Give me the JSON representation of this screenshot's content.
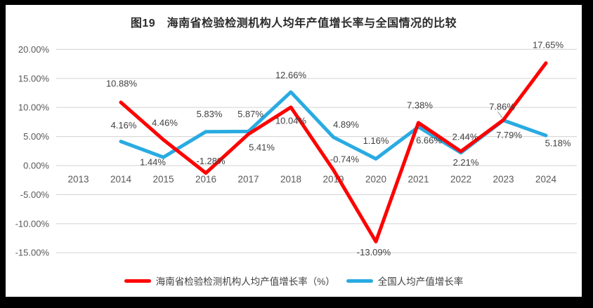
{
  "chart_data": {
    "type": "line",
    "title": "图19　海南省检验检测机构人均年产值增长率与全国情况的比较",
    "categories": [
      "2013",
      "2014",
      "2015",
      "2016",
      "2017",
      "2018",
      "2019",
      "2020",
      "2021",
      "2022",
      "2023",
      "2024"
    ],
    "ylim": [
      -15,
      20
    ],
    "ytick_step": 5,
    "ytick_labels": [
      "20.00%",
      "15.00%",
      "10.00%",
      "5.00%",
      "0.00%",
      "-5.00%",
      "-10.00%",
      "-15.00%"
    ],
    "grid": true,
    "legend_position": "bottom",
    "colors": {
      "grid": "#d9d9d9",
      "axis_text": "#595959",
      "label_text": "#3f3f3f",
      "leader": "#a6a6a6"
    },
    "series": [
      {
        "key": "hainan",
        "name": "海南省检验检测机构人均产值增长率（%）",
        "color": "#fe0000",
        "values": [
          null,
          10.88,
          4.46,
          -1.28,
          5.41,
          10.04,
          -0.74,
          -13.09,
          7.38,
          2.44,
          7.86,
          17.65
        ],
        "labels": [
          null,
          "10.88%",
          "4.46%",
          "-1.28%",
          "5.41%",
          "10.04%",
          "-0.74%",
          "-13.09%",
          "7.38%",
          "2.44%",
          "7.86%",
          "17.65%"
        ],
        "label_offsets": [
          null,
          [
            1,
            -27
          ],
          [
            2,
            -24
          ],
          [
            7,
            -17
          ],
          [
            19,
            19
          ],
          [
            0,
            19
          ],
          [
            16,
            -15
          ],
          [
            -3,
            15
          ],
          [
            2,
            -25
          ],
          [
            6,
            -21
          ],
          [
            -2,
            -19
          ],
          [
            3,
            -26
          ]
        ],
        "label_leaders": [
          false,
          false,
          false,
          false,
          false,
          false,
          false,
          false,
          false,
          false,
          true,
          false
        ]
      },
      {
        "key": "national",
        "name": "全国人均产值增长率",
        "color": "#29abe2",
        "values": [
          null,
          4.16,
          1.44,
          5.83,
          5.87,
          12.66,
          4.89,
          1.16,
          6.66,
          2.21,
          7.79,
          5.18
        ],
        "labels": [
          null,
          "4.16%",
          "1.44%",
          "5.83%",
          "5.87%",
          "12.66%",
          "4.89%",
          "1.16%",
          "6.66%",
          "2.21%",
          "7.79%",
          "5.18%"
        ],
        "label_offsets": [
          null,
          [
            4,
            -23
          ],
          [
            -15,
            7
          ],
          [
            5,
            -25
          ],
          [
            3,
            -25
          ],
          [
            0,
            -24
          ],
          [
            18,
            -18
          ],
          [
            0,
            -26
          ],
          [
            15,
            19
          ],
          [
            7,
            14
          ],
          [
            8,
            21
          ],
          [
            17,
            11
          ]
        ],
        "label_leaders": [
          false,
          false,
          false,
          false,
          false,
          false,
          false,
          false,
          false,
          false,
          false,
          false
        ]
      }
    ]
  },
  "legend": {
    "items": [
      {
        "label": "海南省检验检测机构人均产值增长率（%）"
      },
      {
        "label": "全国人均产值增长率"
      }
    ]
  }
}
